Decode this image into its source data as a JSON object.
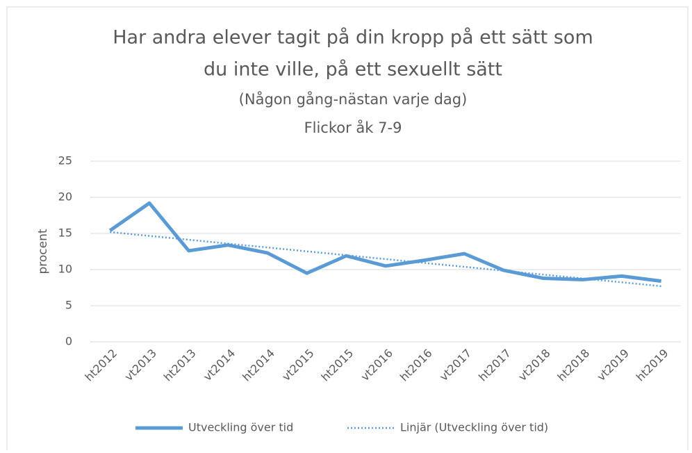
{
  "chart_data": {
    "type": "line",
    "title": [
      "Har andra elever tagit på din kropp på ett sätt som",
      "du inte ville, på ett sexuellt sätt"
    ],
    "subtitle": [
      "(Någon gång-nästan varje dag)",
      "Flickor åk 7-9"
    ],
    "y_label": "procent",
    "categories": [
      "ht2012",
      "vt2013",
      "ht2013",
      "vt2014",
      "ht2014",
      "vt2015",
      "ht2015",
      "vt2016",
      "ht2016",
      "vt2017",
      "ht2017",
      "vt2018",
      "ht2018",
      "vt2019",
      "ht2019"
    ],
    "series": [
      {
        "name": "Utveckling över tid",
        "color": "#5b9bd5",
        "style": "solid",
        "values": [
          15.4,
          19.2,
          12.6,
          13.4,
          12.3,
          9.5,
          11.9,
          10.5,
          11.3,
          12.2,
          9.9,
          8.8,
          8.6,
          9.1,
          8.4
        ]
      },
      {
        "name": "Linjär (Utveckling över tid)",
        "color": "#5b9bd5",
        "style": "dotted",
        "values": [
          15.2,
          14.66,
          14.13,
          13.59,
          13.06,
          12.52,
          11.99,
          11.45,
          10.91,
          10.38,
          9.84,
          9.31,
          8.77,
          8.24,
          7.7
        ]
      }
    ],
    "ylim": [
      0,
      25
    ],
    "yticks": [
      0,
      5,
      10,
      15,
      20,
      25
    ],
    "grid": true,
    "legend": "bottom"
  }
}
